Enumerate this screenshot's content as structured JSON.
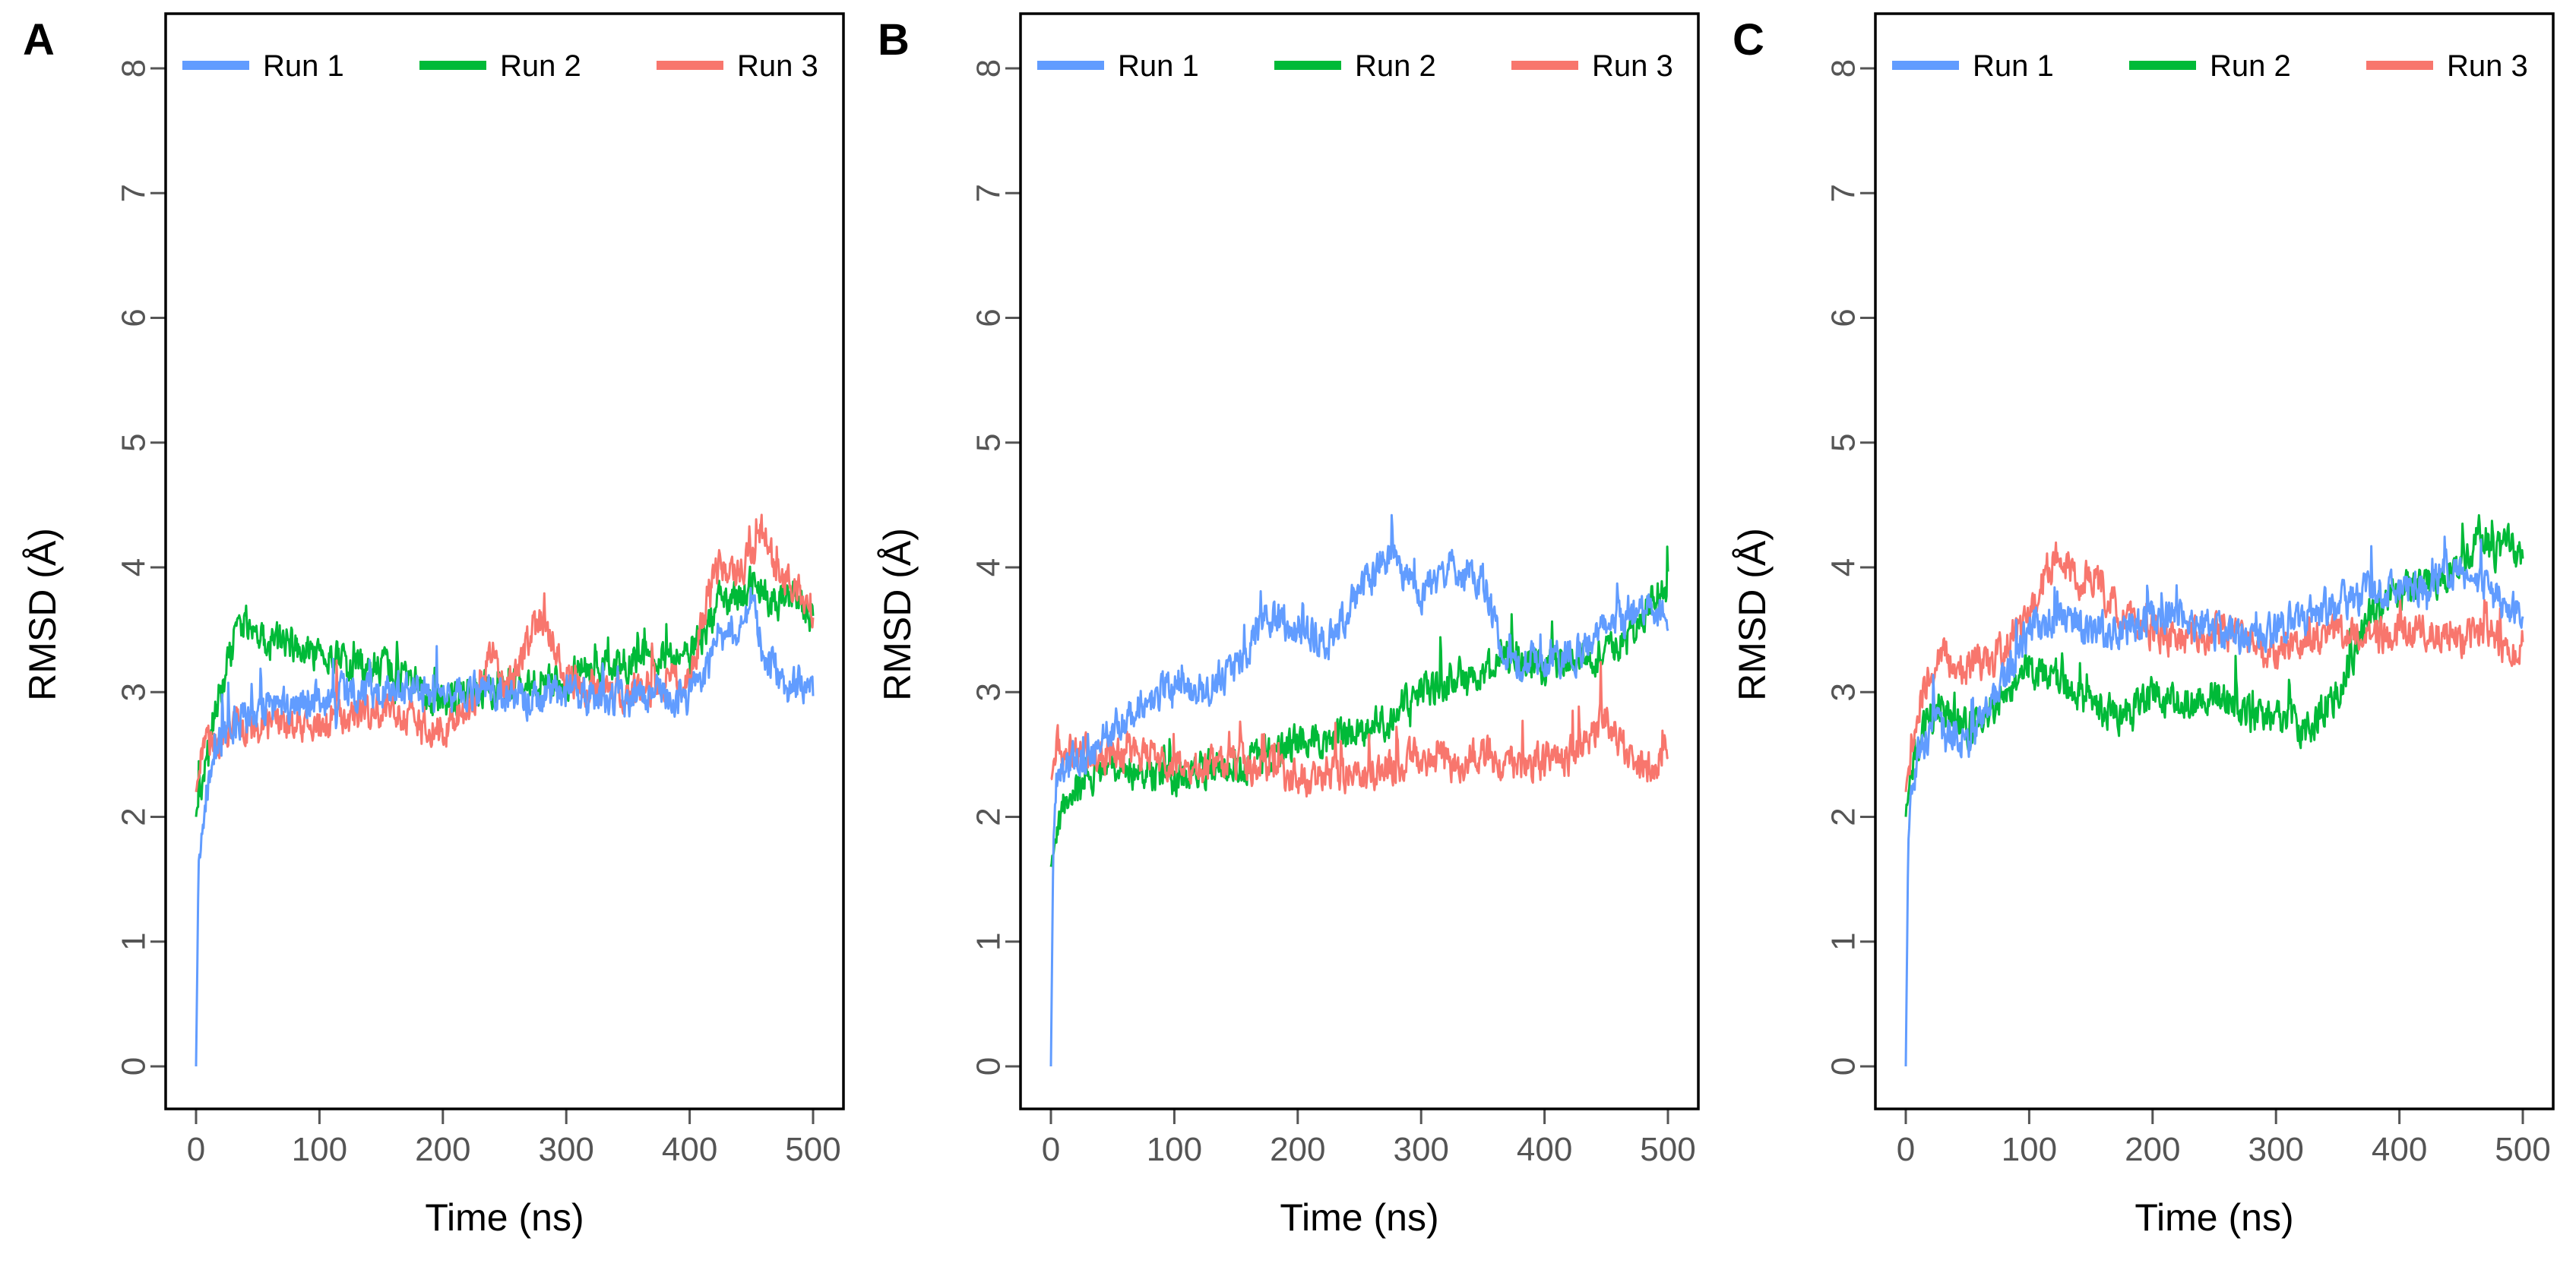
{
  "chart_data": [
    {
      "type": "line",
      "panel_label": "A",
      "xlabel": "Time (ns)",
      "ylabel": "RMSD (Å)",
      "xlim": [
        0,
        500
      ],
      "ylim": [
        0,
        8
      ],
      "xticks": [
        "0",
        "100",
        "200",
        "300",
        "400",
        "500"
      ],
      "yticks": [
        "0",
        "1",
        "2",
        "3",
        "4",
        "5",
        "6",
        "7",
        "8"
      ],
      "legend_position": "top",
      "series": [
        {
          "name": "Run 1",
          "color": "#619CFF",
          "x": [
            0,
            2,
            5,
            10,
            20,
            30,
            50,
            75,
            100,
            125,
            150,
            175,
            200,
            225,
            250,
            275,
            300,
            325,
            350,
            375,
            400,
            415,
            425,
            440,
            450,
            460,
            470,
            480,
            490,
            500
          ],
          "y": [
            0,
            1.6,
            2.0,
            2.3,
            2.6,
            2.75,
            2.85,
            2.9,
            2.95,
            3.0,
            3.0,
            3.0,
            2.95,
            3.0,
            2.95,
            2.95,
            3.0,
            2.95,
            2.95,
            3.0,
            2.95,
            3.2,
            3.6,
            3.4,
            3.8,
            3.3,
            3.2,
            3.0,
            3.1,
            3.0
          ]
        },
        {
          "name": "Run 2",
          "color": "#00BA38",
          "x": [
            0,
            5,
            10,
            20,
            30,
            40,
            50,
            75,
            100,
            125,
            150,
            175,
            200,
            225,
            250,
            275,
            300,
            325,
            350,
            375,
            400,
            415,
            425,
            440,
            450,
            460,
            470,
            480,
            490,
            500
          ],
          "y": [
            2.0,
            2.3,
            2.6,
            3.0,
            3.4,
            3.6,
            3.4,
            3.4,
            3.3,
            3.2,
            3.2,
            3.1,
            2.9,
            3.0,
            3.05,
            3.1,
            3.1,
            3.2,
            3.25,
            3.3,
            3.3,
            3.5,
            3.8,
            3.7,
            3.9,
            3.8,
            3.7,
            3.8,
            3.7,
            3.6
          ]
        },
        {
          "name": "Run 3",
          "color": "#F8766D",
          "x": [
            0,
            5,
            10,
            20,
            30,
            50,
            75,
            100,
            125,
            150,
            175,
            200,
            225,
            240,
            250,
            265,
            275,
            285,
            300,
            325,
            350,
            375,
            400,
            415,
            425,
            440,
            450,
            460,
            470,
            480,
            490,
            500
          ],
          "y": [
            2.2,
            2.5,
            2.6,
            2.6,
            2.7,
            2.7,
            2.75,
            2.8,
            2.8,
            2.85,
            2.8,
            2.7,
            2.9,
            3.4,
            3.0,
            3.3,
            3.6,
            3.5,
            3.1,
            3.0,
            3.0,
            3.05,
            3.1,
            3.8,
            4.0,
            3.9,
            4.1,
            4.3,
            4.0,
            3.9,
            3.8,
            3.5
          ]
        }
      ]
    },
    {
      "type": "line",
      "panel_label": "B",
      "xlabel": "Time (ns)",
      "ylabel": "RMSD (Å)",
      "xlim": [
        0,
        500
      ],
      "ylim": [
        0,
        8
      ],
      "xticks": [
        "0",
        "100",
        "200",
        "300",
        "400",
        "500"
      ],
      "yticks": [
        "0",
        "1",
        "2",
        "3",
        "4",
        "5",
        "6",
        "7",
        "8"
      ],
      "legend_position": "top",
      "series": [
        {
          "name": "Run 1",
          "color": "#619CFF",
          "x": [
            0,
            2,
            5,
            10,
            25,
            50,
            75,
            100,
            125,
            150,
            175,
            200,
            225,
            250,
            265,
            275,
            290,
            300,
            325,
            350,
            360,
            375,
            400,
            425,
            450,
            475,
            490,
            500
          ],
          "y": [
            0,
            1.8,
            2.2,
            2.4,
            2.5,
            2.7,
            2.9,
            3.1,
            3.0,
            3.2,
            3.6,
            3.5,
            3.4,
            3.8,
            4.0,
            4.1,
            3.9,
            3.8,
            4.0,
            3.9,
            3.5,
            3.2,
            3.3,
            3.3,
            3.5,
            3.6,
            3.7,
            3.6
          ]
        },
        {
          "name": "Run 2",
          "color": "#00BA38",
          "x": [
            0,
            5,
            10,
            25,
            50,
            75,
            100,
            125,
            150,
            175,
            200,
            225,
            250,
            275,
            300,
            325,
            350,
            375,
            400,
            425,
            450,
            475,
            490,
            500
          ],
          "y": [
            1.6,
            1.9,
            2.1,
            2.3,
            2.4,
            2.4,
            2.3,
            2.4,
            2.4,
            2.5,
            2.6,
            2.6,
            2.7,
            2.8,
            3.0,
            3.1,
            3.2,
            3.3,
            3.2,
            3.3,
            3.3,
            3.5,
            3.8,
            3.8
          ]
        },
        {
          "name": "Run 3",
          "color": "#F8766D",
          "x": [
            0,
            5,
            10,
            25,
            50,
            75,
            100,
            125,
            150,
            175,
            200,
            225,
            250,
            275,
            300,
            325,
            350,
            375,
            400,
            425,
            450,
            475,
            490,
            500
          ],
          "y": [
            2.3,
            2.6,
            2.5,
            2.5,
            2.5,
            2.5,
            2.4,
            2.4,
            2.4,
            2.4,
            2.3,
            2.35,
            2.3,
            2.4,
            2.5,
            2.4,
            2.5,
            2.4,
            2.45,
            2.5,
            2.8,
            2.4,
            2.4,
            2.6
          ]
        }
      ]
    },
    {
      "type": "line",
      "panel_label": "C",
      "xlabel": "Time (ns)",
      "ylabel": "RMSD (Å)",
      "xlim": [
        0,
        500
      ],
      "ylim": [
        0,
        8
      ],
      "xticks": [
        "0",
        "100",
        "200",
        "300",
        "400",
        "500"
      ],
      "yticks": [
        "0",
        "1",
        "2",
        "3",
        "4",
        "5",
        "6",
        "7",
        "8"
      ],
      "legend_position": "top",
      "series": [
        {
          "name": "Run 1",
          "color": "#619CFF",
          "x": [
            0,
            2,
            5,
            10,
            25,
            50,
            75,
            100,
            125,
            150,
            175,
            200,
            225,
            250,
            275,
            300,
            325,
            350,
            375,
            400,
            425,
            450,
            475,
            490,
            500
          ],
          "y": [
            0,
            1.8,
            2.2,
            2.5,
            2.7,
            2.6,
            3.0,
            3.5,
            3.6,
            3.5,
            3.5,
            3.6,
            3.6,
            3.5,
            3.4,
            3.5,
            3.6,
            3.7,
            3.8,
            3.8,
            3.9,
            4.0,
            3.8,
            3.6,
            3.7
          ]
        },
        {
          "name": "Run 2",
          "color": "#00BA38",
          "x": [
            0,
            5,
            10,
            25,
            50,
            75,
            100,
            125,
            150,
            175,
            200,
            225,
            250,
            275,
            300,
            325,
            350,
            375,
            400,
            425,
            450,
            465,
            475,
            490,
            500
          ],
          "y": [
            2.0,
            2.4,
            2.6,
            2.9,
            2.7,
            2.9,
            3.2,
            3.1,
            2.9,
            2.8,
            3.0,
            2.9,
            3.0,
            2.8,
            2.8,
            2.7,
            3.0,
            3.6,
            3.8,
            3.9,
            4.0,
            4.3,
            4.1,
            4.2,
            4.0
          ]
        },
        {
          "name": "Run 3",
          "color": "#F8766D",
          "x": [
            0,
            5,
            10,
            25,
            50,
            75,
            100,
            115,
            125,
            140,
            150,
            160,
            175,
            200,
            225,
            250,
            275,
            300,
            325,
            350,
            375,
            400,
            425,
            450,
            475,
            490,
            500
          ],
          "y": [
            2.2,
            2.6,
            2.9,
            3.3,
            3.2,
            3.3,
            3.6,
            4.0,
            4.1,
            3.9,
            4.0,
            3.8,
            3.6,
            3.5,
            3.4,
            3.5,
            3.4,
            3.3,
            3.4,
            3.5,
            3.4,
            3.5,
            3.5,
            3.4,
            3.5,
            3.3,
            3.4
          ]
        }
      ]
    }
  ]
}
